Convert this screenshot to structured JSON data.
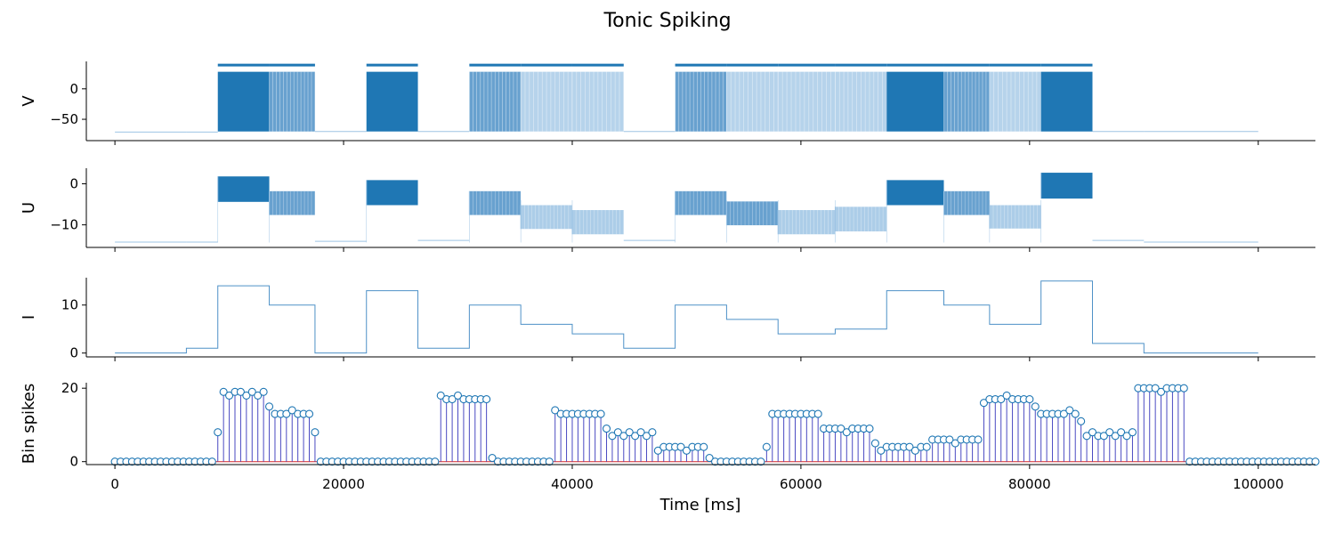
{
  "figure": {
    "title": "Tonic Spiking",
    "xlabel": "Time [ms]"
  },
  "colors": {
    "dark": "#1f77b4",
    "mid": "#4e91c7",
    "light": "#9dc4e4",
    "stem": "#4a4ac2",
    "marker": "#1f77b4"
  },
  "chart_data": [
    {
      "id": "V",
      "type": "line",
      "ylabel": "V",
      "xlim": [
        -2500,
        105000
      ],
      "ylim": [
        -85,
        45
      ],
      "yticks": [
        0,
        -50
      ],
      "rest_levels": [
        -71,
        -71,
        -70,
        -70,
        -70,
        -70,
        -70,
        -71,
        -71,
        -69,
        -70,
        -70
      ],
      "spike_top": 28,
      "spike_bottom": -70,
      "marker_y": 39
    },
    {
      "id": "U",
      "type": "line",
      "ylabel": "U",
      "xlim": [
        -2500,
        105000
      ],
      "ylim": [
        -15.5,
        3.8
      ],
      "yticks": [
        0,
        -10
      ],
      "rest_levels": [
        -14.2,
        -14.2,
        -14,
        -13.8,
        -13.8,
        -13.8,
        -14.2,
        -14.3,
        -14.3,
        -13.6,
        -14.1,
        -14.1
      ],
      "bands": [
        {
          "x": [
            9000,
            13500
          ],
          "lo": -4.4,
          "hi": 1.8,
          "shade": "dark"
        },
        {
          "x": [
            13500,
            17500
          ],
          "lo": -7.6,
          "hi": -1.8,
          "shade": "mid"
        },
        {
          "x": [
            22000,
            26500
          ],
          "lo": -5.2,
          "hi": 0.9,
          "shade": "dark"
        },
        {
          "x": [
            31000,
            35500
          ],
          "lo": -7.6,
          "hi": -1.8,
          "shade": "mid"
        },
        {
          "x": [
            35500,
            40000
          ],
          "lo": -11.0,
          "hi": -5.2,
          "shade": "light"
        },
        {
          "x": [
            40000,
            44500
          ],
          "lo": -12.3,
          "hi": -6.4,
          "shade": "light"
        },
        {
          "x": [
            49000,
            53500
          ],
          "lo": -7.6,
          "hi": -1.8,
          "shade": "mid"
        },
        {
          "x": [
            53500,
            58000
          ],
          "lo": -10.1,
          "hi": -4.3,
          "shade": "mid"
        },
        {
          "x": [
            58000,
            63000
          ],
          "lo": -12.3,
          "hi": -6.4,
          "shade": "light"
        },
        {
          "x": [
            63000,
            67500
          ],
          "lo": -11.6,
          "hi": -5.6,
          "shade": "light"
        },
        {
          "x": [
            67500,
            72500
          ],
          "lo": -5.2,
          "hi": 0.9,
          "shade": "dark"
        },
        {
          "x": [
            72500,
            76500
          ],
          "lo": -7.6,
          "hi": -1.8,
          "shade": "mid"
        },
        {
          "x": [
            76500,
            81000
          ],
          "lo": -10.9,
          "hi": -5.2,
          "shade": "light"
        },
        {
          "x": [
            81000,
            85500
          ],
          "lo": -3.6,
          "hi": 2.7,
          "shade": "dark"
        }
      ]
    },
    {
      "id": "I",
      "type": "line",
      "ylabel": "I",
      "xlim": [
        -2500,
        105000
      ],
      "ylim": [
        -0.8,
        15.7
      ],
      "yticks": [
        10,
        0
      ],
      "steps_x": [
        0,
        6250,
        9000,
        13500,
        17500,
        22000,
        26500,
        31000,
        35500,
        40000,
        44500,
        49000,
        53500,
        58000,
        63000,
        67500,
        72500,
        76500,
        81000,
        85500,
        90000,
        100000
      ],
      "steps_y": [
        0,
        1,
        14,
        10,
        0,
        13,
        1,
        10,
        6,
        4,
        1,
        10,
        7,
        4,
        5,
        13,
        10,
        6,
        15,
        2,
        0
      ]
    },
    {
      "id": "Bin spikes",
      "type": "stem",
      "ylabel": "Bin spikes",
      "xlim": [
        -2500,
        105000
      ],
      "ylim": [
        -0.8,
        21.5
      ],
      "yticks": [
        20,
        0
      ],
      "xticks": [
        0,
        20000,
        40000,
        60000,
        80000,
        100000
      ],
      "bin_width": 500,
      "values": [
        0,
        0,
        0,
        0,
        0,
        0,
        0,
        0,
        0,
        0,
        0,
        0,
        0,
        0,
        0,
        0,
        0,
        0,
        8,
        19,
        18,
        19,
        19,
        18,
        19,
        18,
        19,
        15,
        13,
        13,
        13,
        14,
        13,
        13,
        13,
        8,
        0,
        0,
        0,
        0,
        0,
        0,
        0,
        0,
        0,
        0,
        0,
        0,
        0,
        0,
        0,
        0,
        0,
        0,
        0,
        0,
        0,
        18,
        17,
        17,
        18,
        17,
        17,
        17,
        17,
        17,
        1,
        0,
        0,
        0,
        0,
        0,
        0,
        0,
        0,
        0,
        0,
        14,
        13,
        13,
        13,
        13,
        13,
        13,
        13,
        13,
        9,
        7,
        8,
        7,
        8,
        7,
        8,
        7,
        8,
        3,
        4,
        4,
        4,
        4,
        3,
        4,
        4,
        4,
        1,
        0,
        0,
        0,
        0,
        0,
        0,
        0,
        0,
        0,
        4,
        13,
        13,
        13,
        13,
        13,
        13,
        13,
        13,
        13,
        9,
        9,
        9,
        9,
        8,
        9,
        9,
        9,
        9,
        5,
        3,
        4,
        4,
        4,
        4,
        4,
        3,
        4,
        4,
        6,
        6,
        6,
        6,
        5,
        6,
        6,
        6,
        6,
        16,
        17,
        17,
        17,
        18,
        17,
        17,
        17,
        17,
        15,
        13,
        13,
        13,
        13,
        13,
        14,
        13,
        11,
        7,
        8,
        7,
        7,
        8,
        7,
        8,
        7,
        8,
        20,
        20,
        20,
        20,
        19,
        20,
        20,
        20,
        20,
        0,
        0,
        0,
        0,
        0,
        0,
        0,
        0,
        0,
        0,
        0,
        0,
        0,
        0,
        0,
        0,
        0,
        0,
        0,
        0,
        0,
        0,
        0
      ]
    }
  ]
}
